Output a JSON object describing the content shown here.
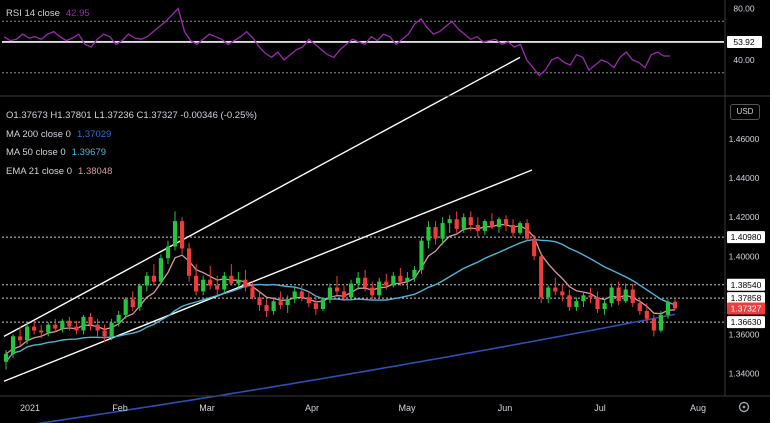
{
  "chart_data": [
    {
      "type": "line",
      "panel": "RSI",
      "series_label": "RSI 14 close",
      "last_value": "42.95",
      "ylim": [
        15,
        85
      ],
      "y_ticks": [
        "80.00",
        "40.00"
      ],
      "reference_lines": [
        70,
        30
      ],
      "marker_value": 53.92,
      "marker_label": "53.92",
      "values": [
        58,
        55,
        56,
        60,
        57,
        58,
        56,
        60,
        62,
        58,
        55,
        57,
        60,
        52,
        50,
        56,
        60,
        58,
        52,
        55,
        60,
        57,
        56,
        58,
        62,
        66,
        70,
        75,
        80,
        62,
        55,
        52,
        56,
        60,
        58,
        56,
        52,
        55,
        58,
        62,
        57,
        50,
        45,
        42,
        46,
        40,
        44,
        48,
        50,
        56,
        52,
        48,
        44,
        42,
        48,
        52,
        56,
        54,
        52,
        58,
        55,
        60,
        58,
        52,
        56,
        60,
        68,
        72,
        65,
        60,
        62,
        66,
        70,
        64,
        60,
        56,
        58,
        54,
        55,
        56,
        52,
        54,
        50,
        52,
        40,
        34,
        28,
        32,
        40,
        42,
        38,
        36,
        44,
        42,
        32,
        36,
        40,
        38,
        34,
        42,
        46,
        40,
        38,
        34,
        44,
        46,
        43,
        43
      ]
    },
    {
      "type": "candlestick",
      "panel": "Price",
      "ohlc": {
        "O": "1.37673",
        "H": "1.37801",
        "L": "1.37236",
        "C": "1.37327",
        "change": "-0.00346",
        "change_pct": "(-0.25%)"
      },
      "ylim": [
        1.33,
        1.48
      ],
      "y_ticks": [
        "1.46000",
        "1.44000",
        "1.42000",
        "1.40000",
        "1.38000",
        "1.36000",
        "1.34000"
      ],
      "x_labels": [
        "2021",
        "Feb",
        "Mar",
        "Apr",
        "May",
        "Jun",
        "Jul",
        "Aug"
      ],
      "candles": [
        [
          1.346,
          1.352,
          1.342,
          1.35
        ],
        [
          1.35,
          1.36,
          1.348,
          1.359
        ],
        [
          1.359,
          1.364,
          1.354,
          1.357
        ],
        [
          1.357,
          1.366,
          1.355,
          1.364
        ],
        [
          1.364,
          1.367,
          1.36,
          1.362
        ],
        [
          1.362,
          1.365,
          1.358,
          1.361
        ],
        [
          1.361,
          1.366,
          1.359,
          1.365
        ],
        [
          1.365,
          1.368,
          1.361,
          1.363
        ],
        [
          1.363,
          1.368,
          1.361,
          1.367
        ],
        [
          1.367,
          1.369,
          1.362,
          1.364
        ],
        [
          1.364,
          1.367,
          1.36,
          1.362
        ],
        [
          1.362,
          1.37,
          1.36,
          1.369
        ],
        [
          1.369,
          1.371,
          1.362,
          1.365
        ],
        [
          1.365,
          1.368,
          1.359,
          1.362
        ],
        [
          1.362,
          1.365,
          1.356,
          1.359
        ],
        [
          1.359,
          1.368,
          1.357,
          1.366
        ],
        [
          1.366,
          1.372,
          1.364,
          1.37
        ],
        [
          1.37,
          1.379,
          1.368,
          1.378
        ],
        [
          1.378,
          1.382,
          1.372,
          1.374
        ],
        [
          1.374,
          1.386,
          1.372,
          1.385
        ],
        [
          1.385,
          1.392,
          1.382,
          1.39
        ],
        [
          1.39,
          1.396,
          1.385,
          1.387
        ],
        [
          1.387,
          1.401,
          1.386,
          1.399
        ],
        [
          1.399,
          1.408,
          1.396,
          1.405
        ],
        [
          1.405,
          1.423,
          1.403,
          1.418
        ],
        [
          1.418,
          1.42,
          1.401,
          1.404
        ],
        [
          1.404,
          1.407,
          1.387,
          1.39
        ],
        [
          1.39,
          1.396,
          1.38,
          1.382
        ],
        [
          1.382,
          1.39,
          1.38,
          1.388
        ],
        [
          1.388,
          1.395,
          1.383,
          1.385
        ],
        [
          1.385,
          1.39,
          1.38,
          1.383
        ],
        [
          1.383,
          1.392,
          1.381,
          1.39
        ],
        [
          1.39,
          1.396,
          1.385,
          1.386
        ],
        [
          1.386,
          1.392,
          1.384,
          1.388
        ],
        [
          1.388,
          1.393,
          1.382,
          1.384
        ],
        [
          1.384,
          1.387,
          1.378,
          1.379
        ],
        [
          1.379,
          1.382,
          1.372,
          1.375
        ],
        [
          1.375,
          1.378,
          1.369,
          1.372
        ],
        [
          1.372,
          1.379,
          1.37,
          1.377
        ],
        [
          1.377,
          1.382,
          1.373,
          1.375
        ],
        [
          1.375,
          1.38,
          1.371,
          1.378
        ],
        [
          1.378,
          1.384,
          1.376,
          1.382
        ],
        [
          1.382,
          1.385,
          1.377,
          1.379
        ],
        [
          1.379,
          1.382,
          1.374,
          1.376
        ],
        [
          1.376,
          1.38,
          1.37,
          1.373
        ],
        [
          1.373,
          1.379,
          1.372,
          1.378
        ],
        [
          1.378,
          1.386,
          1.376,
          1.384
        ],
        [
          1.384,
          1.39,
          1.38,
          1.382
        ],
        [
          1.382,
          1.385,
          1.377,
          1.379
        ],
        [
          1.379,
          1.388,
          1.378,
          1.386
        ],
        [
          1.386,
          1.392,
          1.383,
          1.389
        ],
        [
          1.389,
          1.393,
          1.382,
          1.384
        ],
        [
          1.384,
          1.387,
          1.378,
          1.38
        ],
        [
          1.38,
          1.389,
          1.379,
          1.387
        ],
        [
          1.387,
          1.391,
          1.383,
          1.385
        ],
        [
          1.385,
          1.392,
          1.384,
          1.39
        ],
        [
          1.39,
          1.394,
          1.385,
          1.387
        ],
        [
          1.387,
          1.392,
          1.383,
          1.389
        ],
        [
          1.389,
          1.395,
          1.387,
          1.393
        ],
        [
          1.393,
          1.41,
          1.391,
          1.408
        ],
        [
          1.408,
          1.418,
          1.404,
          1.415
        ],
        [
          1.415,
          1.418,
          1.406,
          1.409
        ],
        [
          1.409,
          1.42,
          1.406,
          1.417
        ],
        [
          1.417,
          1.421,
          1.412,
          1.419
        ],
        [
          1.419,
          1.423,
          1.412,
          1.414
        ],
        [
          1.414,
          1.422,
          1.412,
          1.42
        ],
        [
          1.42,
          1.423,
          1.413,
          1.416
        ],
        [
          1.416,
          1.42,
          1.41,
          1.413
        ],
        [
          1.413,
          1.419,
          1.411,
          1.418
        ],
        [
          1.418,
          1.422,
          1.414,
          1.415
        ],
        [
          1.415,
          1.42,
          1.412,
          1.419
        ],
        [
          1.419,
          1.421,
          1.413,
          1.416
        ],
        [
          1.416,
          1.419,
          1.41,
          1.412
        ],
        [
          1.412,
          1.418,
          1.411,
          1.417
        ],
        [
          1.417,
          1.419,
          1.408,
          1.409
        ],
        [
          1.409,
          1.411,
          1.398,
          1.4
        ],
        [
          1.4,
          1.402,
          1.376,
          1.379
        ],
        [
          1.379,
          1.385,
          1.376,
          1.384
        ],
        [
          1.384,
          1.389,
          1.38,
          1.382
        ],
        [
          1.382,
          1.386,
          1.377,
          1.38
        ],
        [
          1.38,
          1.383,
          1.372,
          1.374
        ],
        [
          1.374,
          1.379,
          1.372,
          1.377
        ],
        [
          1.377,
          1.382,
          1.374,
          1.38
        ],
        [
          1.38,
          1.384,
          1.376,
          1.379
        ],
        [
          1.379,
          1.382,
          1.371,
          1.373
        ],
        [
          1.373,
          1.378,
          1.37,
          1.376
        ],
        [
          1.376,
          1.386,
          1.374,
          1.384
        ],
        [
          1.384,
          1.387,
          1.375,
          1.377
        ],
        [
          1.377,
          1.386,
          1.376,
          1.383
        ],
        [
          1.383,
          1.386,
          1.374,
          1.376
        ],
        [
          1.376,
          1.379,
          1.37,
          1.372
        ],
        [
          1.372,
          1.376,
          1.366,
          1.368
        ],
        [
          1.368,
          1.37,
          1.359,
          1.362
        ],
        [
          1.362,
          1.372,
          1.361,
          1.37
        ],
        [
          1.37,
          1.378,
          1.368,
          1.3767
        ],
        [
          1.3767,
          1.378,
          1.3724,
          1.3733
        ]
      ],
      "overlays": [
        {
          "name": "MA 200 close 0",
          "value_label": "1.37029",
          "color": "#2b4fb8"
        },
        {
          "name": "MA 50 close 0",
          "value_label": "1.39679",
          "color": "#4fb3d6"
        },
        {
          "name": "EMA 21 close 0",
          "value_label": "1.38048",
          "color": "#d59aa1"
        }
      ],
      "price_tags": [
        {
          "value": 1.4098,
          "label": "1.40980",
          "style": "white"
        },
        {
          "value": 1.3854,
          "label": "1.38540",
          "style": "white"
        },
        {
          "value": 1.37858,
          "label": "1.37858",
          "style": "white"
        },
        {
          "value": 1.37327,
          "label": "1.37327",
          "style": "red"
        },
        {
          "value": 1.3663,
          "label": "1.36630",
          "style": "white"
        }
      ]
    }
  ],
  "currency_button": "USD",
  "colors": {
    "up": "#26c540",
    "down": "#ef3d3d",
    "rsi": "#9c27b0",
    "background": "#000000"
  }
}
